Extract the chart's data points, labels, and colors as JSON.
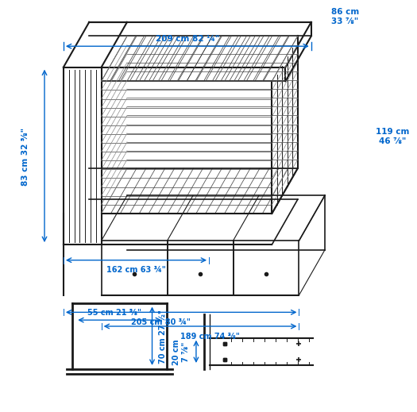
{
  "bg_color": "#ffffff",
  "line_color": "#1a1a1a",
  "dim_color": "#0066cc",
  "annotations": {
    "top_width": "209 cm 82 ¼\"",
    "depth_top": "86 cm\n33 ⅞\"",
    "height_right": "119 cm\n46 ⅞\"",
    "height_left": "83 cm 32 ⅝\"",
    "inner_depth": "162 cm 63 ¾\"",
    "total_length": "205 cm 80 ¾\"",
    "drawer_width": "189 cm 74 ⅜\"",
    "front_width": "55 cm 21 ⅝\"",
    "front_height": "70 cm 27 ½\"",
    "slat_height": "20 cm\n7 ⅞\""
  }
}
